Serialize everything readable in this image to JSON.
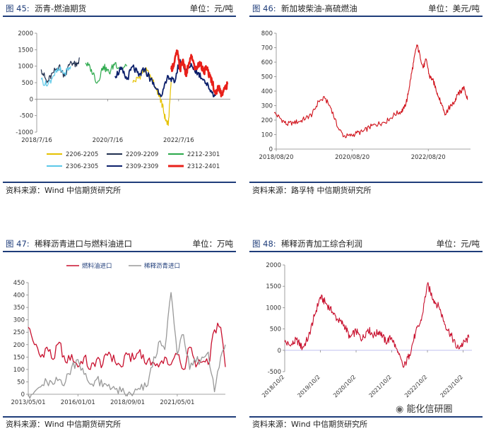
{
  "panels": [
    {
      "figure": "图 45:",
      "title": "沥青-燃油期货",
      "unit": "单位：元/吨",
      "source": "资料来源：Wind   中信期货研究所"
    },
    {
      "figure": "图 46:",
      "title": "新加坡柴油-高硫燃油",
      "unit": "单位：美元/吨",
      "source": "资料来源：路孚特   中信期货研究所"
    },
    {
      "figure": "图 47:",
      "title": "稀释沥青进口与燃料油进口",
      "unit": "单位：万吨",
      "source": "资料来源：Wind   中信期货研究所"
    },
    {
      "figure": "图 48:",
      "title": "稀释沥青加工综合利润",
      "unit": "单位：元/吨",
      "source": "资料来源：Wind   中信期货研究所"
    }
  ],
  "watermark": "能化信研圈",
  "chart_data": [
    {
      "type": "line",
      "xlabel": "",
      "ylabel": "",
      "ylim": [
        -1000,
        2000
      ],
      "yticks": [
        -1000,
        -500,
        0,
        500,
        1000,
        1500,
        2000
      ],
      "x_tick_labels": [
        "2018/7/16",
        "2020/7/16",
        "2022/7/16"
      ],
      "x_range": [
        "2018/7/16",
        "2023/12/31"
      ],
      "legend_position": "bottom",
      "series": [
        {
          "name": "2206-2205",
          "color": "#e5c100",
          "x": [
            "2021-04",
            "2021-06",
            "2021-08",
            "2021-10",
            "2021-12",
            "2022-01",
            "2022-02",
            "2022-03",
            "2022-04",
            "2022-05"
          ],
          "values": [
            500,
            650,
            900,
            700,
            300,
            100,
            -200,
            -600,
            -800,
            600
          ]
        },
        {
          "name": "2209-2209",
          "color": "#1f2f4f",
          "x": [
            "2018-09",
            "2018-11",
            "2019-01",
            "2019-03",
            "2019-05",
            "2019-07",
            "2019-09",
            "2019-10"
          ],
          "values": [
            900,
            500,
            800,
            1000,
            700,
            1150,
            1000,
            1250
          ]
        },
        {
          "name": "2212-2301",
          "color": "#2aa84a",
          "x": [
            "2019-12",
            "2020-02",
            "2020-04",
            "2020-06",
            "2020-08",
            "2020-10",
            "2020-12",
            "2021-02"
          ],
          "values": [
            1100,
            900,
            500,
            1000,
            800,
            1100,
            900,
            1000
          ]
        },
        {
          "name": "2306-2305",
          "color": "#5bc8e8",
          "x": [
            "2018-09",
            "2018-11",
            "2019-01",
            "2019-03",
            "2019-05",
            "2019-07"
          ],
          "values": [
            600,
            400,
            700,
            900,
            800,
            1000
          ]
        },
        {
          "name": "2309-2309",
          "color": "#0b1f6b",
          "x": [
            "2020-10",
            "2020-12",
            "2021-02",
            "2021-04",
            "2021-06",
            "2021-08",
            "2021-10",
            "2021-12",
            "2022-02",
            "2022-04",
            "2022-06",
            "2022-08",
            "2022-10",
            "2022-12",
            "2023-02",
            "2023-04",
            "2023-06",
            "2023-08"
          ],
          "values": [
            700,
            900,
            600,
            1000,
            700,
            900,
            600,
            300,
            150,
            700,
            500,
            1200,
            900,
            1000,
            800,
            600,
            300,
            100
          ]
        },
        {
          "name": "2312-2401",
          "color": "#e8201a",
          "x": [
            "2022-05",
            "2022-06",
            "2022-07",
            "2022-08",
            "2022-09",
            "2022-10",
            "2022-11",
            "2022-12",
            "2023-01",
            "2023-02",
            "2023-03",
            "2023-04",
            "2023-05",
            "2023-06",
            "2023-07",
            "2023-08",
            "2023-09",
            "2023-10",
            "2023-11",
            "2023-12"
          ],
          "values": [
            900,
            1100,
            1450,
            900,
            1200,
            700,
            1100,
            1300,
            900,
            1000,
            1100,
            800,
            950,
            700,
            500,
            150,
            400,
            150,
            300,
            450
          ]
        }
      ]
    },
    {
      "type": "line",
      "xlabel": "",
      "ylabel": "",
      "ylim": [
        0,
        800
      ],
      "yticks": [
        0,
        100,
        200,
        300,
        400,
        500,
        600,
        700,
        800
      ],
      "x_tick_labels": [
        "2018/08/20",
        "2020/08/20",
        "2022/08/20"
      ],
      "x_range": [
        "2018/08/20",
        "2023/09/30"
      ],
      "series": [
        {
          "name": "",
          "color": "#d0121b",
          "x": [
            "2018-08",
            "2018-10",
            "2018-12",
            "2019-02",
            "2019-04",
            "2019-06",
            "2019-08",
            "2019-10",
            "2019-12",
            "2020-02",
            "2020-04",
            "2020-06",
            "2020-08",
            "2020-10",
            "2020-12",
            "2021-02",
            "2021-04",
            "2021-06",
            "2021-08",
            "2021-10",
            "2021-12",
            "2022-01",
            "2022-02",
            "2022-03",
            "2022-04",
            "2022-05",
            "2022-06",
            "2022-07",
            "2022-08",
            "2022-09",
            "2022-10",
            "2022-11",
            "2022-12",
            "2023-01",
            "2023-02",
            "2023-03",
            "2023-04",
            "2023-05",
            "2023-06",
            "2023-07",
            "2023-08",
            "2023-09"
          ],
          "values": [
            250,
            210,
            170,
            185,
            190,
            215,
            240,
            330,
            350,
            280,
            150,
            90,
            90,
            110,
            120,
            150,
            170,
            180,
            200,
            240,
            260,
            280,
            350,
            480,
            600,
            720,
            650,
            560,
            620,
            500,
            480,
            420,
            350,
            300,
            240,
            280,
            300,
            330,
            380,
            400,
            420,
            340
          ]
        }
      ]
    },
    {
      "type": "line",
      "xlabel": "",
      "ylabel": "",
      "ylim": [
        0,
        450
      ],
      "yticks": [
        0,
        50,
        100,
        150,
        200,
        250,
        300,
        350,
        400,
        450
      ],
      "x_tick_labels": [
        "2013/05/01",
        "2016/01/01",
        "2018/09/01",
        "2021/05/01"
      ],
      "x_range": [
        "2013/05/01",
        "2023/12/01"
      ],
      "legend_position": "top",
      "series": [
        {
          "name": "燃料油进口",
          "color": "#c8102e",
          "x": [
            "2013-05",
            "2013-09",
            "2014-01",
            "2014-05",
            "2014-09",
            "2015-01",
            "2015-05",
            "2015-09",
            "2016-01",
            "2016-05",
            "2016-09",
            "2017-01",
            "2017-05",
            "2017-09",
            "2018-01",
            "2018-05",
            "2018-09",
            "2019-01",
            "2019-05",
            "2019-09",
            "2020-01",
            "2020-05",
            "2020-09",
            "2021-01",
            "2021-05",
            "2021-09",
            "2022-01",
            "2022-05",
            "2022-09",
            "2023-01",
            "2023-05",
            "2023-09",
            "2023-12"
          ],
          "values": [
            270,
            200,
            150,
            190,
            140,
            210,
            130,
            160,
            110,
            150,
            100,
            140,
            120,
            170,
            130,
            110,
            160,
            140,
            180,
            120,
            130,
            110,
            150,
            120,
            160,
            100,
            190,
            110,
            130,
            120,
            260,
            270,
            110
          ]
        },
        {
          "name": "稀释沥青进口",
          "color": "#999999",
          "x": [
            "2013-05",
            "2013-09",
            "2014-01",
            "2014-05",
            "2014-09",
            "2015-01",
            "2015-05",
            "2015-09",
            "2016-01",
            "2016-05",
            "2016-09",
            "2017-01",
            "2017-05",
            "2017-09",
            "2018-01",
            "2018-05",
            "2018-09",
            "2019-01",
            "2019-05",
            "2019-09",
            "2020-01",
            "2020-05",
            "2020-09",
            "2021-01",
            "2021-05",
            "2021-09",
            "2022-01",
            "2022-05",
            "2022-09",
            "2023-01",
            "2023-05",
            "2023-09",
            "2023-12"
          ],
          "values": [
            0,
            10,
            30,
            50,
            40,
            60,
            50,
            110,
            140,
            80,
            40,
            60,
            30,
            40,
            20,
            10,
            0,
            5,
            20,
            30,
            110,
            210,
            180,
            410,
            160,
            240,
            100,
            130,
            150,
            170,
            10,
            150,
            200
          ]
        }
      ]
    },
    {
      "type": "line",
      "xlabel": "",
      "ylabel": "",
      "ylim": [
        -500,
        2000
      ],
      "yticks": [
        -500,
        0,
        500,
        1000,
        1500,
        2000
      ],
      "x_tick_labels": [
        "2018/10/2",
        "2019/10/2",
        "2020/10/2",
        "2021/10/2",
        "2022/10/2",
        "2023/10/2"
      ],
      "x_range": [
        "2018/10/2",
        "2023/12/31"
      ],
      "series": [
        {
          "name": "",
          "color": "#c8102e",
          "x": [
            "2018-10",
            "2018-12",
            "2019-02",
            "2019-04",
            "2019-06",
            "2019-08",
            "2019-10",
            "2019-12",
            "2020-02",
            "2020-04",
            "2020-06",
            "2020-08",
            "2020-10",
            "2020-12",
            "2021-02",
            "2021-04",
            "2021-06",
            "2021-08",
            "2021-10",
            "2021-12",
            "2022-02",
            "2022-04",
            "2022-06",
            "2022-08",
            "2022-10",
            "2022-12",
            "2023-02",
            "2023-04",
            "2023-06",
            "2023-08",
            "2023-10",
            "2023-12"
          ],
          "values": [
            200,
            100,
            250,
            50,
            300,
            800,
            1250,
            1100,
            900,
            700,
            600,
            300,
            450,
            250,
            500,
            350,
            450,
            200,
            300,
            -50,
            -400,
            -100,
            400,
            700,
            1550,
            1200,
            1000,
            600,
            350,
            50,
            150,
            300
          ]
        }
      ]
    }
  ]
}
